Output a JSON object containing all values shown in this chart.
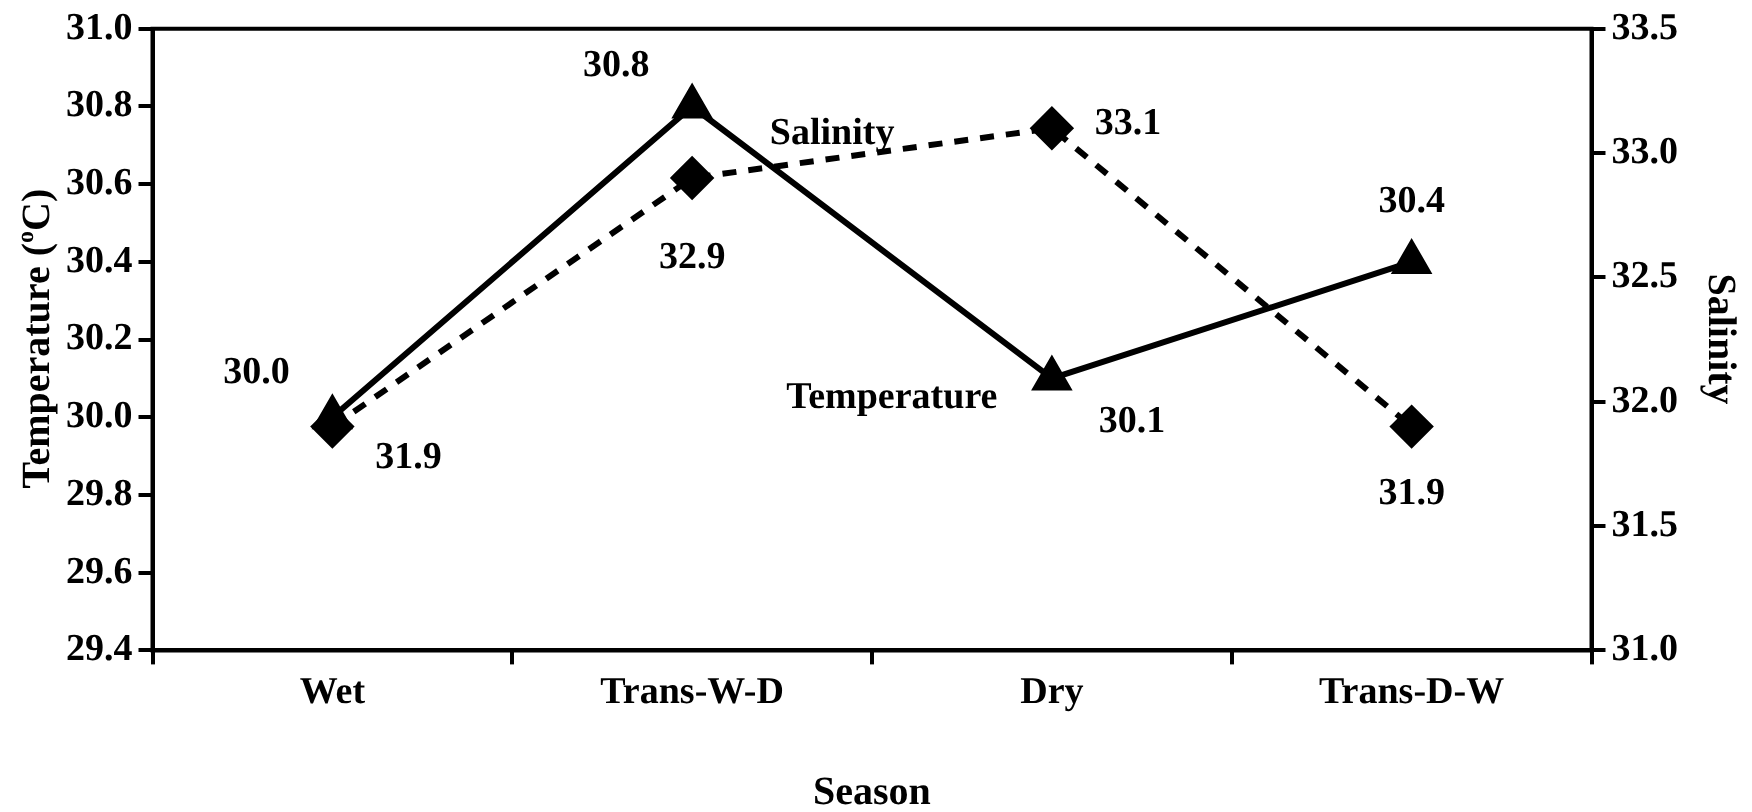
{
  "chart_data": {
    "type": "line",
    "xlabel": "Season",
    "ylabel": "Temperature ($^{o}$C)",
    "y2label": "Salinity",
    "categories": [
      "Wet",
      "Trans-W-D",
      "Dry",
      "Trans-D-W"
    ],
    "series": [
      {
        "name": "Temperature",
        "color": "#000000",
        "values": [
          30.0,
          30.8,
          30.1,
          30.4
        ],
        "value_labels": [
          "30.0",
          "30.8",
          "30.1",
          "30.4"
        ],
        "marker": "triangle",
        "line_style": "solid"
      },
      {
        "name": "Salinity",
        "color": "#000000",
        "values": [
          31.9,
          32.9,
          33.1,
          31.9
        ],
        "value_labels": [
          "31.9",
          "32.9",
          "33.1",
          "31.9"
        ],
        "axis": "y2",
        "marker": "diamond",
        "line_style": "dashed"
      }
    ],
    "ylim": [
      29.4,
      31.0
    ],
    "yticks": [
      {
        "value": 29.4,
        "label": "29.4"
      },
      {
        "value": 29.6,
        "label": "29.6"
      },
      {
        "value": 29.8,
        "label": "29.8"
      },
      {
        "value": 30.0,
        "label": "30.0"
      },
      {
        "value": 30.2,
        "label": "30.2"
      },
      {
        "value": 30.4,
        "label": "30.4"
      },
      {
        "value": 30.6,
        "label": "30.6"
      },
      {
        "value": 30.8,
        "label": "30.8"
      },
      {
        "value": 31.0,
        "label": "31.0"
      }
    ],
    "y2lim": [
      31.0,
      33.5
    ],
    "y2ticks": [
      {
        "value": 31.0,
        "label": "31.0"
      },
      {
        "value": 31.5,
        "label": "31.5"
      },
      {
        "value": 32.0,
        "label": "32.0"
      },
      {
        "value": 32.5,
        "label": "32.5"
      },
      {
        "value": 33.0,
        "label": "33.0"
      },
      {
        "value": 33.5,
        "label": "33.5"
      }
    ],
    "grid": false,
    "legend": false
  }
}
